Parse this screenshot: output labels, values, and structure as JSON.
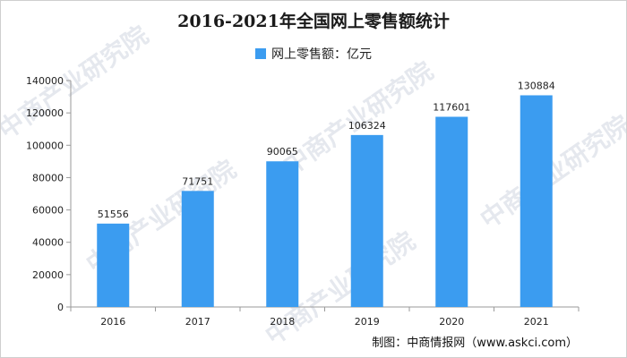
{
  "chart_data": {
    "type": "bar",
    "title": "2016-2021年全国网上零售额统计",
    "categories": [
      "2016",
      "2017",
      "2018",
      "2019",
      "2020",
      "2021"
    ],
    "series": [
      {
        "name": "网上零售额：亿元",
        "values": [
          51556,
          71751,
          90065,
          106324,
          117601,
          130884
        ]
      }
    ],
    "ylim": [
      0,
      140000
    ],
    "yticks": [
      0,
      20000,
      40000,
      60000,
      80000,
      100000,
      120000,
      140000
    ],
    "grid": false,
    "legend": "top-center",
    "bar_color": "#3b9cf0"
  },
  "footer": "制图：中商情报网（www.askci.com）",
  "watermark": "中商产业研究院"
}
